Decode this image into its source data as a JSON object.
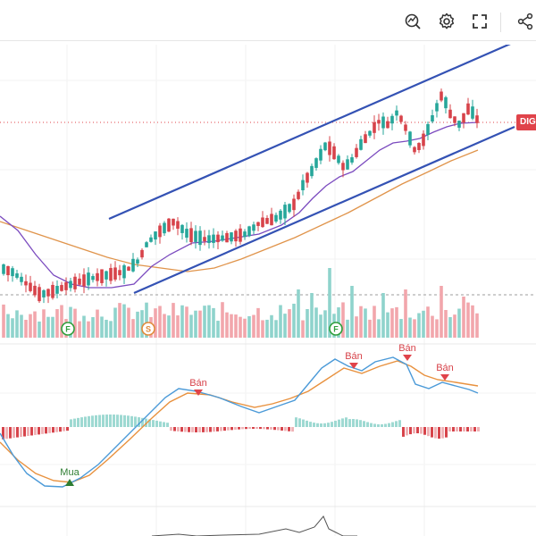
{
  "toolbar": {
    "buttons": [
      {
        "name": "indicator-icon"
      },
      {
        "name": "gear-icon"
      },
      {
        "name": "fullscreen-icon"
      },
      {
        "name": "share-icon"
      }
    ]
  },
  "symbol_tag": "DIG",
  "events": [
    {
      "label": "F",
      "color": "#2e9e3b"
    },
    {
      "label": "S",
      "color": "#e08a3a"
    },
    {
      "label": "F",
      "color": "#2e9e3b"
    }
  ],
  "signals": {
    "sell_labels": [
      "Bán",
      "Bán",
      "Bán",
      "Bán"
    ],
    "buy_label": "Mua"
  },
  "colors": {
    "up": "#26a69a",
    "down": "#d7434a",
    "channel": "#3452b4",
    "ma_fast": "#7b4bbf",
    "ma_slow": "#e0944b",
    "macd": "#4b9ad8",
    "signal": "#e8913e"
  }
}
